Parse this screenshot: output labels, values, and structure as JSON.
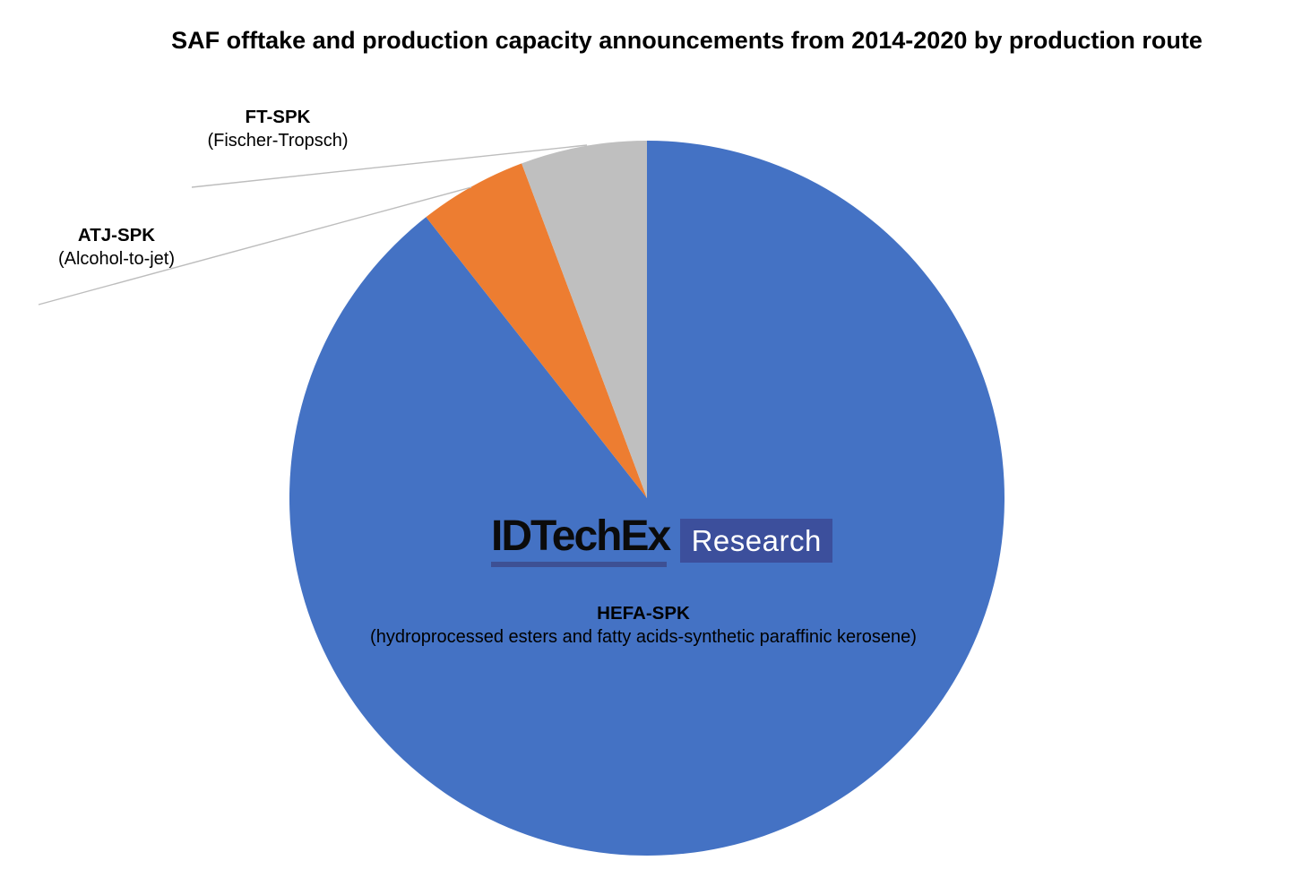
{
  "title": "SAF offtake and production capacity announcements from 2014-2020 by production route",
  "logo": {
    "brand": "IDTechEx",
    "suffix": "Research",
    "brand_color": "#0b0b0b",
    "underline_color": "#3D5094",
    "box_color": "#3C4F9C",
    "suffix_text_color": "#FFFFFF"
  },
  "chart_data": {
    "type": "pie",
    "title": "SAF offtake and production capacity announcements from 2014-2020 by production route",
    "categories": [
      "HEFA-SPK",
      "ATJ-SPK",
      "FT-SPK"
    ],
    "values_pct": [
      89.4,
      4.9,
      5.7
    ],
    "slices": [
      {
        "label": "HEFA-SPK",
        "sublabel": "(hydroprocessed esters and fatty acids-synthetic paraffinic kerosene)",
        "pct": 89.4,
        "color": "#4472C4"
      },
      {
        "label": "ATJ-SPK",
        "sublabel": "(Alcohol-to-jet)",
        "pct": 4.9,
        "color": "#ED7D31"
      },
      {
        "label": "FT-SPK",
        "sublabel": "(Fischer-Tropsch)",
        "pct": 5.7,
        "color": "#BFBFBF"
      }
    ],
    "start_angle_deg": 0,
    "direction": "clockwise",
    "legend_position": "none",
    "data_labels": "category-names-with-leader-lines",
    "leader_line_color": "#BDBDBD",
    "background": "#FFFFFF"
  }
}
